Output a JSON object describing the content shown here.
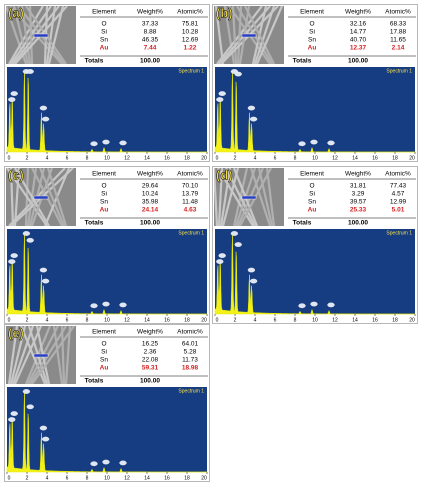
{
  "table_header": [
    "Element",
    "Weight%",
    "Atomic%"
  ],
  "totals_label": "Totals",
  "spectrum_label": "Spectrum 1",
  "spectrum_xticks": [
    0,
    2,
    4,
    6,
    8,
    10,
    12,
    14,
    16,
    18,
    20
  ],
  "panels": [
    {
      "label": "(a)",
      "rows": [
        [
          "O",
          "37.33",
          "75.81"
        ],
        [
          "Si",
          "8.88",
          "10.28"
        ],
        [
          "Sn",
          "46.35",
          "12.69"
        ],
        [
          "Au",
          "7.44",
          "1.22"
        ]
      ],
      "total": "100.00"
    },
    {
      "label": "(b)",
      "rows": [
        [
          "O",
          "32.16",
          "68.33"
        ],
        [
          "Si",
          "14.77",
          "17.88"
        ],
        [
          "Sn",
          "40.70",
          "11.65"
        ],
        [
          "Au",
          "12.37",
          "2.14"
        ]
      ],
      "total": "100.00"
    },
    {
      "label": "(c)",
      "rows": [
        [
          "O",
          "29.64",
          "70.10"
        ],
        [
          "Si",
          "10.24",
          "13.79"
        ],
        [
          "Sn",
          "35.98",
          "11.48"
        ],
        [
          "Au",
          "24.14",
          "4.63"
        ]
      ],
      "total": "100.00"
    },
    {
      "label": "(d)",
      "rows": [
        [
          "O",
          "31.81",
          "77.43"
        ],
        [
          "Si",
          "3.29",
          "4.57"
        ],
        [
          "Sn",
          "39.57",
          "12.99"
        ],
        [
          "Au",
          "25.33",
          "5.01"
        ]
      ],
      "total": "100.00"
    },
    {
      "label": "(e)",
      "rows": [
        [
          "O",
          "16.25",
          "64.01"
        ],
        [
          "Si",
          "2.36",
          "5.28"
        ],
        [
          "Sn",
          "22.08",
          "11.73"
        ],
        [
          "Au",
          "59.31",
          "18.98"
        ]
      ],
      "total": "100.00"
    }
  ]
}
